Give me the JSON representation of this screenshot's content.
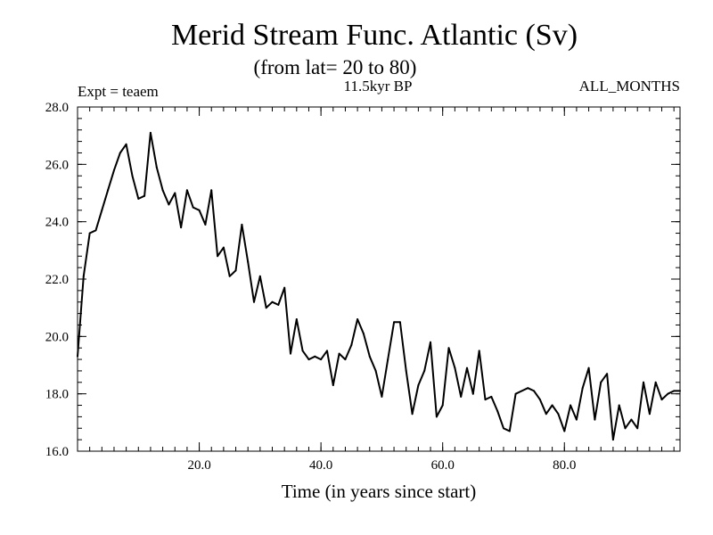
{
  "chart_data": {
    "type": "line",
    "title": "Merid Stream Func. Atlantic (Sv)",
    "subtitle": "(from lat= 20 to 80)",
    "experiment_label": "Expt = teaem",
    "period_label": "11.5kyr BP",
    "months_label": "ALL_MONTHS",
    "xlabel": "Time (in years since start)",
    "ylabel": "",
    "xlim": [
      0,
      99
    ],
    "ylim": [
      16.0,
      28.0
    ],
    "x_ticks": [
      20,
      40,
      60,
      80
    ],
    "x_tick_labels": [
      "20.0",
      "40.0",
      "60.0",
      "80.0"
    ],
    "y_ticks": [
      16,
      18,
      20,
      22,
      24,
      26,
      28
    ],
    "y_tick_labels": [
      "16.0",
      "18.0",
      "20.0",
      "22.0",
      "24.0",
      "26.0",
      "28.0"
    ],
    "grid": false,
    "series": [
      {
        "name": "Merid Stream Func. Atlantic",
        "color": "#000000",
        "x": [
          0,
          1,
          2,
          3,
          4,
          5,
          6,
          7,
          8,
          9,
          10,
          11,
          12,
          13,
          14,
          15,
          16,
          17,
          18,
          19,
          20,
          21,
          22,
          23,
          24,
          25,
          26,
          27,
          28,
          29,
          30,
          31,
          32,
          33,
          34,
          35,
          36,
          37,
          38,
          39,
          40,
          41,
          42,
          43,
          44,
          45,
          46,
          47,
          48,
          49,
          50,
          51,
          52,
          53,
          54,
          55,
          56,
          57,
          58,
          59,
          60,
          61,
          62,
          63,
          64,
          65,
          66,
          67,
          68,
          69,
          70,
          71,
          72,
          73,
          74,
          75,
          76,
          77,
          78,
          79,
          80,
          81,
          82,
          83,
          84,
          85,
          86,
          87,
          88,
          89,
          90,
          91,
          92,
          93,
          94,
          95,
          96,
          97,
          98,
          99
        ],
        "values": [
          19.3,
          22.1,
          23.6,
          23.7,
          24.4,
          25.1,
          25.8,
          26.4,
          26.7,
          25.6,
          24.8,
          24.9,
          27.1,
          25.9,
          25.1,
          24.6,
          25.0,
          23.8,
          25.1,
          24.5,
          24.4,
          23.9,
          25.1,
          22.8,
          23.1,
          22.1,
          22.3,
          23.9,
          22.6,
          21.2,
          22.1,
          21.0,
          21.2,
          21.1,
          21.7,
          19.4,
          20.6,
          19.5,
          19.2,
          19.3,
          19.2,
          19.5,
          18.3,
          19.4,
          19.2,
          19.7,
          20.6,
          20.1,
          19.3,
          18.8,
          17.9,
          19.2,
          20.5,
          20.5,
          18.8,
          17.3,
          18.3,
          18.8,
          19.8,
          17.2,
          17.6,
          19.6,
          18.9,
          17.9,
          18.9,
          18.0,
          19.5,
          17.8,
          17.9,
          17.4,
          16.8,
          16.7,
          18.0,
          18.1,
          18.2,
          18.1,
          17.8,
          17.3,
          17.6,
          17.3,
          16.7,
          17.6,
          17.1,
          18.2,
          18.9,
          17.1,
          18.4,
          18.7,
          16.4,
          17.6,
          16.8,
          17.1,
          16.8,
          18.4,
          17.3,
          18.4,
          17.8,
          18.0,
          18.1,
          18.1
        ]
      }
    ]
  }
}
